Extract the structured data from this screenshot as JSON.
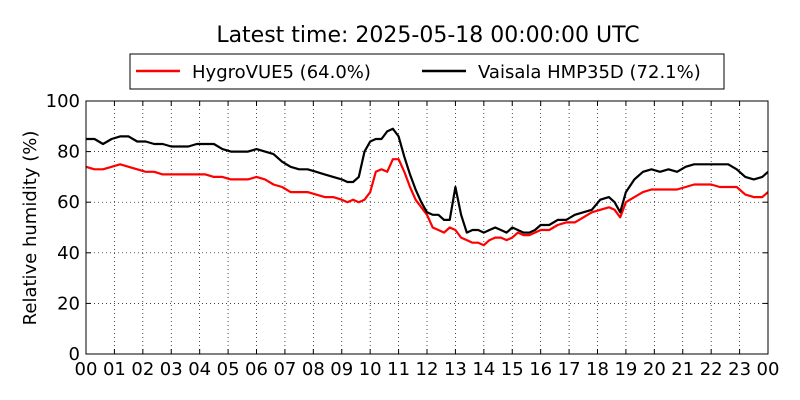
{
  "chart_data": {
    "type": "line",
    "title": "Latest time: 2025-05-18 00:00:00 UTC",
    "xlabel": "",
    "ylabel": "Relative humidity (%)",
    "x_ticks": [
      "00",
      "01",
      "02",
      "03",
      "04",
      "05",
      "06",
      "07",
      "08",
      "09",
      "10",
      "11",
      "12",
      "13",
      "14",
      "15",
      "16",
      "17",
      "18",
      "19",
      "20",
      "21",
      "22",
      "23",
      "00"
    ],
    "xlim": [
      0,
      24
    ],
    "ylim": [
      0,
      100
    ],
    "y_ticks": [
      "0",
      "20",
      "40",
      "60",
      "80",
      "100"
    ],
    "grid": true,
    "legend_position": "top",
    "series": [
      {
        "name": "HygroVUE5 (64.0%)",
        "color": "#ff0000",
        "x": [
          0,
          0.3,
          0.6,
          0.9,
          1.2,
          1.5,
          1.8,
          2.1,
          2.4,
          2.7,
          3.0,
          3.3,
          3.6,
          3.9,
          4.2,
          4.5,
          4.8,
          5.1,
          5.4,
          5.7,
          6.0,
          6.3,
          6.6,
          6.9,
          7.2,
          7.5,
          7.8,
          8.1,
          8.4,
          8.7,
          9.0,
          9.2,
          9.4,
          9.6,
          9.8,
          10.0,
          10.2,
          10.4,
          10.6,
          10.8,
          11.0,
          11.2,
          11.4,
          11.6,
          11.8,
          12.0,
          12.2,
          12.4,
          12.6,
          12.8,
          13.0,
          13.2,
          13.4,
          13.6,
          13.8,
          14.0,
          14.2,
          14.4,
          14.6,
          14.8,
          15.0,
          15.2,
          15.4,
          15.6,
          15.8,
          16.0,
          16.3,
          16.6,
          16.9,
          17.2,
          17.5,
          17.8,
          18.1,
          18.4,
          18.6,
          18.8,
          19.0,
          19.3,
          19.6,
          19.9,
          20.2,
          20.5,
          20.8,
          21.1,
          21.4,
          21.7,
          22.0,
          22.3,
          22.6,
          22.9,
          23.2,
          23.5,
          23.8,
          24.0
        ],
        "values": [
          74,
          73,
          73,
          74,
          75,
          74,
          73,
          72,
          72,
          71,
          71,
          71,
          71,
          71,
          71,
          70,
          70,
          69,
          69,
          69,
          70,
          69,
          67,
          66,
          64,
          64,
          64,
          63,
          62,
          62,
          61,
          60,
          61,
          60,
          61,
          64,
          72,
          73,
          72,
          77,
          77,
          72,
          66,
          61,
          58,
          55,
          50,
          49,
          48,
          50,
          49,
          46,
          45,
          44,
          44,
          43,
          45,
          46,
          46,
          45,
          46,
          48,
          47,
          47,
          48,
          49,
          49,
          51,
          52,
          52,
          54,
          56,
          57,
          58,
          57,
          54,
          60,
          62,
          64,
          65,
          65,
          65,
          65,
          66,
          67,
          67,
          67,
          66,
          66,
          66,
          63,
          62,
          62,
          64
        ],
        "current": "64.0%"
      },
      {
        "name": "Vaisala HMP35D (72.1%)",
        "color": "#000000",
        "x": [
          0,
          0.3,
          0.6,
          0.9,
          1.2,
          1.5,
          1.8,
          2.1,
          2.4,
          2.7,
          3.0,
          3.3,
          3.6,
          3.9,
          4.2,
          4.5,
          4.8,
          5.1,
          5.4,
          5.7,
          6.0,
          6.3,
          6.6,
          6.9,
          7.2,
          7.5,
          7.8,
          8.1,
          8.4,
          8.7,
          9.0,
          9.2,
          9.4,
          9.6,
          9.8,
          10.0,
          10.2,
          10.4,
          10.6,
          10.8,
          11.0,
          11.2,
          11.4,
          11.6,
          11.8,
          12.0,
          12.2,
          12.4,
          12.6,
          12.8,
          13.0,
          13.2,
          13.4,
          13.6,
          13.8,
          14.0,
          14.2,
          14.4,
          14.6,
          14.8,
          15.0,
          15.2,
          15.4,
          15.6,
          15.8,
          16.0,
          16.3,
          16.6,
          16.9,
          17.2,
          17.5,
          17.8,
          18.1,
          18.4,
          18.6,
          18.8,
          19.0,
          19.3,
          19.6,
          19.9,
          20.2,
          20.5,
          20.8,
          21.1,
          21.4,
          21.7,
          22.0,
          22.3,
          22.6,
          22.9,
          23.2,
          23.5,
          23.8,
          24.0
        ],
        "values": [
          85,
          85,
          83,
          85,
          86,
          86,
          84,
          84,
          83,
          83,
          82,
          82,
          82,
          83,
          83,
          83,
          81,
          80,
          80,
          80,
          81,
          80,
          79,
          76,
          74,
          73,
          73,
          72,
          71,
          70,
          69,
          68,
          68,
          70,
          80,
          84,
          85,
          85,
          88,
          89,
          86,
          78,
          71,
          65,
          60,
          56,
          55,
          55,
          53,
          53,
          66,
          55,
          48,
          49,
          49,
          48,
          49,
          50,
          49,
          48,
          50,
          49,
          48,
          48,
          49,
          51,
          51,
          53,
          53,
          55,
          56,
          57,
          61,
          62,
          60,
          56,
          64,
          69,
          72,
          73,
          72,
          73,
          72,
          74,
          75,
          75,
          75,
          75,
          75,
          73,
          70,
          69,
          70,
          72
        ],
        "current": "72.1%"
      }
    ]
  }
}
